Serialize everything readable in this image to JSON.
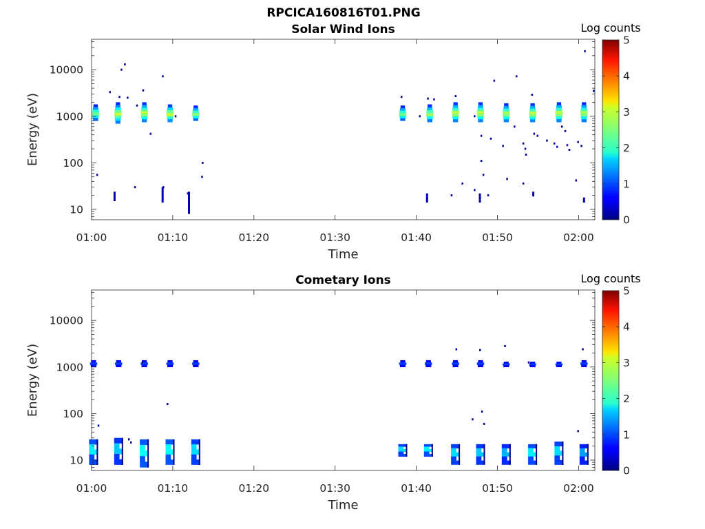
{
  "figure_title": "RPCICA160816T01.PNG",
  "colorbar": {
    "label": "Log counts",
    "ticks": [
      "0",
      "1",
      "2",
      "3",
      "4",
      "5"
    ],
    "range": [
      0,
      5
    ],
    "colormap": "jet"
  },
  "chart_data": [
    {
      "type": "heatmap",
      "title": "Solar Wind Ions",
      "xlabel": "Time",
      "ylabel": "Energy (eV)",
      "yscale": "log",
      "ylim": [
        6,
        45000
      ],
      "xlim": [
        "01:00",
        "02:02"
      ],
      "xticks": [
        "01:00",
        "01:10",
        "01:20",
        "01:30",
        "01:40",
        "01:50",
        "02:00"
      ],
      "yticks": [
        "10",
        "100",
        "1000",
        "10000"
      ],
      "grid": false,
      "blobs": [
        {
          "t": "01:00:30",
          "e_lo": 800,
          "e_hi": 1800,
          "peak": 2.6
        },
        {
          "t": "01:03:15",
          "e_lo": 700,
          "e_hi": 2000,
          "peak": 2.9
        },
        {
          "t": "01:06:30",
          "e_lo": 750,
          "e_hi": 2000,
          "peak": 3.0
        },
        {
          "t": "01:09:40",
          "e_lo": 750,
          "e_hi": 1800,
          "peak": 3.0
        },
        {
          "t": "01:12:50",
          "e_lo": 800,
          "e_hi": 1700,
          "peak": 2.7
        },
        {
          "t": "01:38:20",
          "e_lo": 800,
          "e_hi": 1700,
          "peak": 2.6
        },
        {
          "t": "01:41:40",
          "e_lo": 750,
          "e_hi": 1800,
          "peak": 2.8
        },
        {
          "t": "01:44:50",
          "e_lo": 750,
          "e_hi": 2000,
          "peak": 3.0
        },
        {
          "t": "01:47:55",
          "e_lo": 750,
          "e_hi": 2000,
          "peak": 3.0
        },
        {
          "t": "01:51:05",
          "e_lo": 750,
          "e_hi": 1900,
          "peak": 2.9
        },
        {
          "t": "01:54:20",
          "e_lo": 750,
          "e_hi": 1900,
          "peak": 3.0
        },
        {
          "t": "01:57:35",
          "e_lo": 750,
          "e_hi": 2000,
          "peak": 3.0
        },
        {
          "t": "02:00:40",
          "e_lo": 750,
          "e_hi": 2000,
          "peak": 2.9
        }
      ],
      "scatter": [
        [
          "01:00:40",
          55
        ],
        [
          "01:02:15",
          3300
        ],
        [
          "01:03:25",
          2600
        ],
        [
          "01:03:40",
          10000
        ],
        [
          "01:04:05",
          13000
        ],
        [
          "01:04:25",
          2500
        ],
        [
          "01:05:35",
          1700
        ],
        [
          "01:06:20",
          3600
        ],
        [
          "01:07:15",
          420
        ],
        [
          "01:08:45",
          7200
        ],
        [
          "01:10:20",
          1000
        ],
        [
          "01:13:40",
          100
        ],
        [
          "01:13:35",
          50
        ],
        [
          "01:38:10",
          2600
        ],
        [
          "01:40:25",
          1000
        ],
        [
          "01:41:25",
          2400
        ],
        [
          "01:42:10",
          2300
        ],
        [
          "01:44:50",
          2700
        ],
        [
          "01:47:10",
          1000
        ],
        [
          "01:48:00",
          380
        ],
        [
          "01:48:00",
          110
        ],
        [
          "01:48:15",
          55
        ],
        [
          "01:49:10",
          330
        ],
        [
          "01:49:35",
          5800
        ],
        [
          "01:50:40",
          230
        ],
        [
          "01:52:05",
          600
        ],
        [
          "01:52:20",
          7200
        ],
        [
          "01:53:10",
          260
        ],
        [
          "01:53:25",
          200
        ],
        [
          "01:53:30",
          150
        ],
        [
          "01:54:15",
          2900
        ],
        [
          "01:54:30",
          420
        ],
        [
          "01:54:55",
          380
        ],
        [
          "01:56:05",
          300
        ],
        [
          "01:57:00",
          260
        ],
        [
          "01:57:20",
          220
        ],
        [
          "01:57:55",
          600
        ],
        [
          "01:58:20",
          480
        ],
        [
          "01:58:35",
          240
        ],
        [
          "01:58:50",
          190
        ],
        [
          "01:59:55",
          280
        ],
        [
          "02:00:20",
          230
        ],
        [
          "02:00:45",
          25000
        ],
        [
          "02:01:50",
          3500
        ],
        [
          "01:05:20",
          30
        ],
        [
          "01:08:50",
          30
        ],
        [
          "01:11:50",
          22
        ],
        [
          "01:44:20",
          20
        ],
        [
          "01:45:40",
          36
        ],
        [
          "01:47:10",
          26
        ],
        [
          "01:48:50",
          20
        ],
        [
          "01:51:10",
          45
        ],
        [
          "01:53:10",
          36
        ],
        [
          "01:59:40",
          42
        ]
      ],
      "low_bars": [
        {
          "t": "01:02:50",
          "e_lo": 15,
          "e_hi": 24
        },
        {
          "t": "01:08:45",
          "e_lo": 14,
          "e_hi": 30
        },
        {
          "t": "01:12:00",
          "e_lo": 8,
          "e_hi": 24
        },
        {
          "t": "01:41:20",
          "e_lo": 14,
          "e_hi": 22
        },
        {
          "t": "01:47:50",
          "e_lo": 14,
          "e_hi": 22
        },
        {
          "t": "01:54:25",
          "e_lo": 19,
          "e_hi": 24
        },
        {
          "t": "02:00:40",
          "e_lo": 14,
          "e_hi": 18
        }
      ]
    },
    {
      "type": "heatmap",
      "title": "Cometary Ions",
      "xlabel": "Time",
      "ylabel": "Energy (eV)",
      "yscale": "log",
      "ylim": [
        6,
        45000
      ],
      "xlim": [
        "01:00",
        "02:02"
      ],
      "xticks": [
        "01:00",
        "01:10",
        "01:20",
        "01:30",
        "01:40",
        "01:50",
        "02:00"
      ],
      "yticks": [
        "10",
        "100",
        "1000",
        "10000"
      ],
      "grid": false,
      "blobs": [
        {
          "t": "01:00:15",
          "e_lo": 1000,
          "e_hi": 1400,
          "peak": 1.0
        },
        {
          "t": "01:03:20",
          "e_lo": 1000,
          "e_hi": 1400,
          "peak": 1.0
        },
        {
          "t": "01:06:30",
          "e_lo": 1000,
          "e_hi": 1400,
          "peak": 1.0
        },
        {
          "t": "01:09:40",
          "e_lo": 1000,
          "e_hi": 1400,
          "peak": 1.0
        },
        {
          "t": "01:12:50",
          "e_lo": 1000,
          "e_hi": 1400,
          "peak": 1.0
        },
        {
          "t": "01:38:20",
          "e_lo": 1000,
          "e_hi": 1400,
          "peak": 1.0
        },
        {
          "t": "01:41:30",
          "e_lo": 1000,
          "e_hi": 1400,
          "peak": 1.0
        },
        {
          "t": "01:44:50",
          "e_lo": 1000,
          "e_hi": 1400,
          "peak": 1.0
        },
        {
          "t": "01:47:55",
          "e_lo": 1000,
          "e_hi": 1400,
          "peak": 1.0
        },
        {
          "t": "01:51:05",
          "e_lo": 1000,
          "e_hi": 1300,
          "peak": 1.0
        },
        {
          "t": "01:54:20",
          "e_lo": 1000,
          "e_hi": 1300,
          "peak": 1.0
        },
        {
          "t": "01:57:35",
          "e_lo": 1000,
          "e_hi": 1300,
          "peak": 1.0
        },
        {
          "t": "02:00:40",
          "e_lo": 1000,
          "e_hi": 1400,
          "peak": 1.0
        }
      ],
      "low_bands": [
        {
          "t": "01:00:15",
          "e_lo": 8,
          "e_hi": 28,
          "peak": 1.8
        },
        {
          "t": "01:03:20",
          "e_lo": 8,
          "e_hi": 30,
          "peak": 1.6
        },
        {
          "t": "01:06:30",
          "e_lo": 7,
          "e_hi": 28,
          "peak": 1.9
        },
        {
          "t": "01:09:40",
          "e_lo": 8,
          "e_hi": 28,
          "peak": 1.9
        },
        {
          "t": "01:12:50",
          "e_lo": 8,
          "e_hi": 28,
          "peak": 1.7
        },
        {
          "t": "01:38:20",
          "e_lo": 12,
          "e_hi": 22,
          "peak": 1.7
        },
        {
          "t": "01:41:30",
          "e_lo": 12,
          "e_hi": 22,
          "peak": 1.8
        },
        {
          "t": "01:44:50",
          "e_lo": 8,
          "e_hi": 22,
          "peak": 1.7
        },
        {
          "t": "01:47:55",
          "e_lo": 8,
          "e_hi": 22,
          "peak": 1.6
        },
        {
          "t": "01:51:05",
          "e_lo": 8,
          "e_hi": 22,
          "peak": 1.5
        },
        {
          "t": "01:54:20",
          "e_lo": 8,
          "e_hi": 22,
          "peak": 1.8
        },
        {
          "t": "01:57:35",
          "e_lo": 8,
          "e_hi": 25,
          "peak": 1.7
        },
        {
          "t": "02:00:40",
          "e_lo": 8,
          "e_hi": 22,
          "peak": 1.4
        }
      ],
      "scatter": [
        [
          "01:00:50",
          55
        ],
        [
          "01:04:35",
          28
        ],
        [
          "01:06:15",
          1250
        ],
        [
          "01:09:20",
          160
        ],
        [
          "01:44:55",
          2400
        ],
        [
          "01:46:55",
          75
        ],
        [
          "01:47:50",
          2300
        ],
        [
          "01:48:05",
          110
        ],
        [
          "01:48:20",
          60
        ],
        [
          "01:50:55",
          2800
        ],
        [
          "01:53:50",
          1250
        ],
        [
          "01:59:55",
          42
        ],
        [
          "02:00:30",
          2400
        ],
        [
          "01:04:50",
          24
        ]
      ]
    }
  ]
}
